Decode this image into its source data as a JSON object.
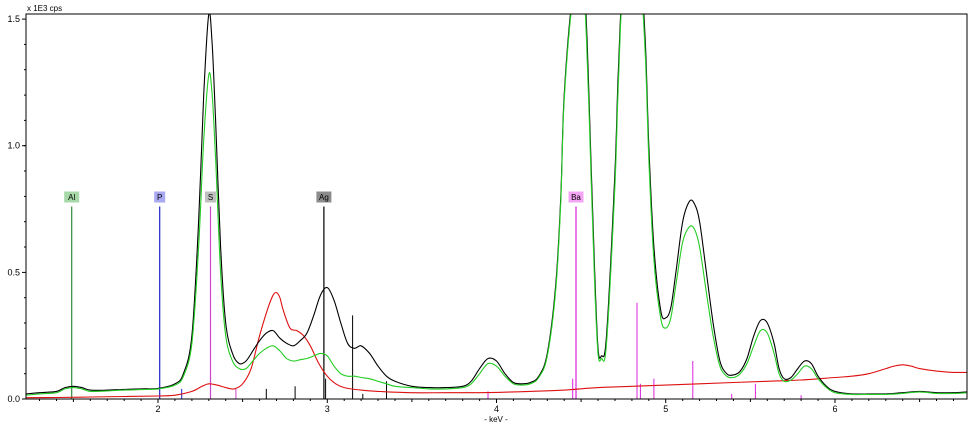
{
  "chart_data": {
    "type": "line",
    "unit_label": "x 1E3 cps",
    "xlabel": "- keV -",
    "xlim": [
      1.22,
      6.78
    ],
    "ylim": [
      0,
      1.52
    ],
    "x_ticks": [
      {
        "value": 2,
        "label": "2"
      },
      {
        "value": 3,
        "label": "3"
      },
      {
        "value": 4,
        "label": "4"
      },
      {
        "value": 5,
        "label": "5"
      },
      {
        "value": 6,
        "label": "6"
      }
    ],
    "y_ticks": [
      {
        "value": 0.0,
        "label": "0.0"
      },
      {
        "value": 0.5,
        "label": "0.5"
      },
      {
        "value": 1.0,
        "label": "1.0"
      },
      {
        "value": 1.5,
        "label": "1.5"
      }
    ],
    "grid": false,
    "series": [
      {
        "color": "#000000",
        "x": [
          1.22,
          1.3,
          1.4,
          1.45,
          1.5,
          1.55,
          1.6,
          1.7,
          1.8,
          1.9,
          2.0,
          2.1,
          2.15,
          2.2,
          2.24,
          2.27,
          2.3,
          2.32,
          2.34,
          2.37,
          2.4,
          2.44,
          2.48,
          2.52,
          2.56,
          2.6,
          2.64,
          2.68,
          2.72,
          2.76,
          2.8,
          2.84,
          2.88,
          2.92,
          2.96,
          3.0,
          3.04,
          3.08,
          3.12,
          3.16,
          3.2,
          3.25,
          3.3,
          3.35,
          3.4,
          3.5,
          3.6,
          3.7,
          3.8,
          3.85,
          3.9,
          3.95,
          4.0,
          4.05,
          4.1,
          4.15,
          4.2,
          4.25,
          4.3,
          4.35,
          4.38,
          4.4,
          4.45,
          4.5,
          4.53,
          4.56,
          4.58,
          4.6,
          4.62,
          4.65,
          4.7,
          4.72,
          4.75,
          4.8,
          4.85,
          4.88,
          4.9,
          4.93,
          4.97,
          5.0,
          5.03,
          5.06,
          5.1,
          5.14,
          5.17,
          5.2,
          5.24,
          5.28,
          5.32,
          5.36,
          5.4,
          5.44,
          5.48,
          5.52,
          5.56,
          5.6,
          5.64,
          5.67,
          5.7,
          5.74,
          5.78,
          5.82,
          5.86,
          5.9,
          5.95,
          6.0,
          6.1,
          6.2,
          6.3,
          6.4,
          6.5,
          6.6,
          6.7,
          6.78
        ],
        "y": [
          0.02,
          0.025,
          0.03,
          0.045,
          0.05,
          0.045,
          0.035,
          0.035,
          0.038,
          0.04,
          0.042,
          0.06,
          0.1,
          0.25,
          0.7,
          1.2,
          1.52,
          1.4,
          1.1,
          0.6,
          0.3,
          0.18,
          0.14,
          0.15,
          0.19,
          0.23,
          0.26,
          0.27,
          0.24,
          0.22,
          0.21,
          0.23,
          0.26,
          0.33,
          0.41,
          0.44,
          0.39,
          0.3,
          0.22,
          0.2,
          0.21,
          0.18,
          0.13,
          0.09,
          0.07,
          0.05,
          0.045,
          0.045,
          0.05,
          0.07,
          0.12,
          0.16,
          0.15,
          0.1,
          0.065,
          0.06,
          0.065,
          0.09,
          0.18,
          0.45,
          0.8,
          1.2,
          1.6,
          1.75,
          1.5,
          0.9,
          0.5,
          0.2,
          0.17,
          0.25,
          0.9,
          1.3,
          1.7,
          1.8,
          1.7,
          1.4,
          1.0,
          0.6,
          0.35,
          0.32,
          0.36,
          0.5,
          0.7,
          0.78,
          0.77,
          0.7,
          0.5,
          0.3,
          0.15,
          0.1,
          0.095,
          0.11,
          0.16,
          0.25,
          0.31,
          0.3,
          0.22,
          0.12,
          0.08,
          0.085,
          0.12,
          0.15,
          0.14,
          0.09,
          0.05,
          0.03,
          0.02,
          0.02,
          0.02,
          0.025,
          0.03,
          0.025,
          0.025,
          0.028
        ]
      },
      {
        "color": "#22cc22",
        "x": [
          1.22,
          1.3,
          1.4,
          1.45,
          1.5,
          1.55,
          1.6,
          1.7,
          1.8,
          1.9,
          2.0,
          2.1,
          2.15,
          2.2,
          2.24,
          2.27,
          2.3,
          2.32,
          2.34,
          2.37,
          2.4,
          2.44,
          2.48,
          2.52,
          2.56,
          2.6,
          2.64,
          2.68,
          2.72,
          2.76,
          2.8,
          2.84,
          2.88,
          2.92,
          2.96,
          3.0,
          3.04,
          3.08,
          3.12,
          3.16,
          3.2,
          3.25,
          3.3,
          3.35,
          3.4,
          3.5,
          3.6,
          3.7,
          3.8,
          3.85,
          3.9,
          3.95,
          4.0,
          4.05,
          4.1,
          4.15,
          4.2,
          4.25,
          4.3,
          4.35,
          4.38,
          4.4,
          4.45,
          4.5,
          4.53,
          4.56,
          4.58,
          4.6,
          4.62,
          4.65,
          4.7,
          4.72,
          4.75,
          4.8,
          4.85,
          4.88,
          4.9,
          4.93,
          4.97,
          5.0,
          5.03,
          5.06,
          5.1,
          5.14,
          5.17,
          5.2,
          5.24,
          5.28,
          5.32,
          5.36,
          5.4,
          5.44,
          5.48,
          5.52,
          5.56,
          5.6,
          5.64,
          5.67,
          5.7,
          5.74,
          5.78,
          5.82,
          5.86,
          5.9,
          5.95,
          6.0,
          6.1,
          6.2,
          6.3,
          6.4,
          6.5,
          6.6,
          6.7,
          6.78
        ],
        "y": [
          0.015,
          0.02,
          0.025,
          0.04,
          0.045,
          0.04,
          0.03,
          0.032,
          0.035,
          0.037,
          0.04,
          0.055,
          0.09,
          0.22,
          0.6,
          1.02,
          1.28,
          1.2,
          0.95,
          0.5,
          0.25,
          0.15,
          0.12,
          0.12,
          0.15,
          0.18,
          0.2,
          0.21,
          0.19,
          0.16,
          0.15,
          0.155,
          0.16,
          0.17,
          0.18,
          0.17,
          0.13,
          0.1,
          0.09,
          0.09,
          0.085,
          0.08,
          0.07,
          0.06,
          0.05,
          0.045,
          0.04,
          0.04,
          0.045,
          0.06,
          0.1,
          0.14,
          0.13,
          0.09,
          0.06,
          0.055,
          0.06,
          0.085,
          0.17,
          0.43,
          0.78,
          1.18,
          1.58,
          1.72,
          1.45,
          0.85,
          0.45,
          0.18,
          0.16,
          0.22,
          0.85,
          1.25,
          1.68,
          1.78,
          1.66,
          1.35,
          0.95,
          0.55,
          0.32,
          0.28,
          0.32,
          0.45,
          0.62,
          0.68,
          0.67,
          0.6,
          0.42,
          0.25,
          0.13,
          0.09,
          0.085,
          0.1,
          0.14,
          0.21,
          0.27,
          0.26,
          0.18,
          0.1,
          0.07,
          0.075,
          0.1,
          0.13,
          0.12,
          0.08,
          0.045,
          0.025,
          0.018,
          0.018,
          0.018,
          0.022,
          0.028,
          0.022,
          0.022,
          0.025
        ]
      },
      {
        "color": "#dd1111",
        "x": [
          1.22,
          1.4,
          1.6,
          1.8,
          2.0,
          2.1,
          2.2,
          2.26,
          2.3,
          2.35,
          2.4,
          2.45,
          2.5,
          2.55,
          2.6,
          2.65,
          2.68,
          2.7,
          2.72,
          2.74,
          2.78,
          2.82,
          2.86,
          2.9,
          2.95,
          3.0,
          3.05,
          3.1,
          3.2,
          3.3,
          3.5,
          3.7,
          3.9,
          4.0,
          4.2,
          4.4,
          4.6,
          4.8,
          5.0,
          5.2,
          5.4,
          5.6,
          5.8,
          6.0,
          6.1,
          6.2,
          6.3,
          6.35,
          6.4,
          6.45,
          6.5,
          6.6,
          6.7,
          6.78
        ],
        "y": [
          0.005,
          0.006,
          0.008,
          0.01,
          0.012,
          0.015,
          0.03,
          0.05,
          0.06,
          0.055,
          0.045,
          0.04,
          0.06,
          0.12,
          0.25,
          0.36,
          0.41,
          0.42,
          0.4,
          0.35,
          0.28,
          0.27,
          0.25,
          0.21,
          0.14,
          0.09,
          0.06,
          0.045,
          0.035,
          0.03,
          0.025,
          0.025,
          0.025,
          0.026,
          0.03,
          0.035,
          0.045,
          0.05,
          0.055,
          0.06,
          0.065,
          0.07,
          0.075,
          0.085,
          0.09,
          0.1,
          0.12,
          0.13,
          0.135,
          0.13,
          0.12,
          0.11,
          0.105,
          0.105
        ]
      }
    ],
    "element_markers": [
      {
        "label": "Al",
        "x": 1.49,
        "height": 0.76,
        "color": "#2e8b3a",
        "bg": "#a7d9a8"
      },
      {
        "label": "P",
        "x": 2.01,
        "height": 0.76,
        "color": "#2222cc",
        "bg": "#a9a9f2"
      },
      {
        "label": "S",
        "x": 2.31,
        "height": 0.76,
        "color": "#cc44cc",
        "bg": "#c0c0c0"
      },
      {
        "label": "Ag",
        "x": 2.98,
        "height": 0.76,
        "color": "#000000",
        "bg": "#8c8c8c"
      },
      {
        "label": "Ba",
        "x": 4.47,
        "height": 0.76,
        "color": "#dd22dd",
        "bg": "#f4a4f4"
      }
    ],
    "line_markers": [
      {
        "x": 2.14,
        "height": 0.04,
        "color": "#2222cc"
      },
      {
        "x": 2.46,
        "height": 0.04,
        "color": "#cc44cc"
      },
      {
        "x": 2.64,
        "height": 0.04,
        "color": "#000000"
      },
      {
        "x": 2.81,
        "height": 0.05,
        "color": "#000000"
      },
      {
        "x": 2.99,
        "height": 0.08,
        "color": "#000000"
      },
      {
        "x": 3.15,
        "height": 0.33,
        "color": "#000000"
      },
      {
        "x": 3.21,
        "height": 0.02,
        "color": "#000000"
      },
      {
        "x": 3.35,
        "height": 0.07,
        "color": "#000000"
      },
      {
        "x": 3.95,
        "height": 0.03,
        "color": "#dd22dd"
      },
      {
        "x": 4.45,
        "height": 0.08,
        "color": "#dd22dd"
      },
      {
        "x": 4.83,
        "height": 0.38,
        "color": "#dd22dd"
      },
      {
        "x": 4.85,
        "height": 0.06,
        "color": "#dd22dd"
      },
      {
        "x": 4.93,
        "height": 0.08,
        "color": "#dd22dd"
      },
      {
        "x": 5.16,
        "height": 0.15,
        "color": "#dd22dd"
      },
      {
        "x": 5.39,
        "height": 0.02,
        "color": "#dd22dd"
      },
      {
        "x": 5.53,
        "height": 0.06,
        "color": "#dd22dd"
      },
      {
        "x": 5.8,
        "height": 0.015,
        "color": "#dd22dd"
      }
    ]
  }
}
